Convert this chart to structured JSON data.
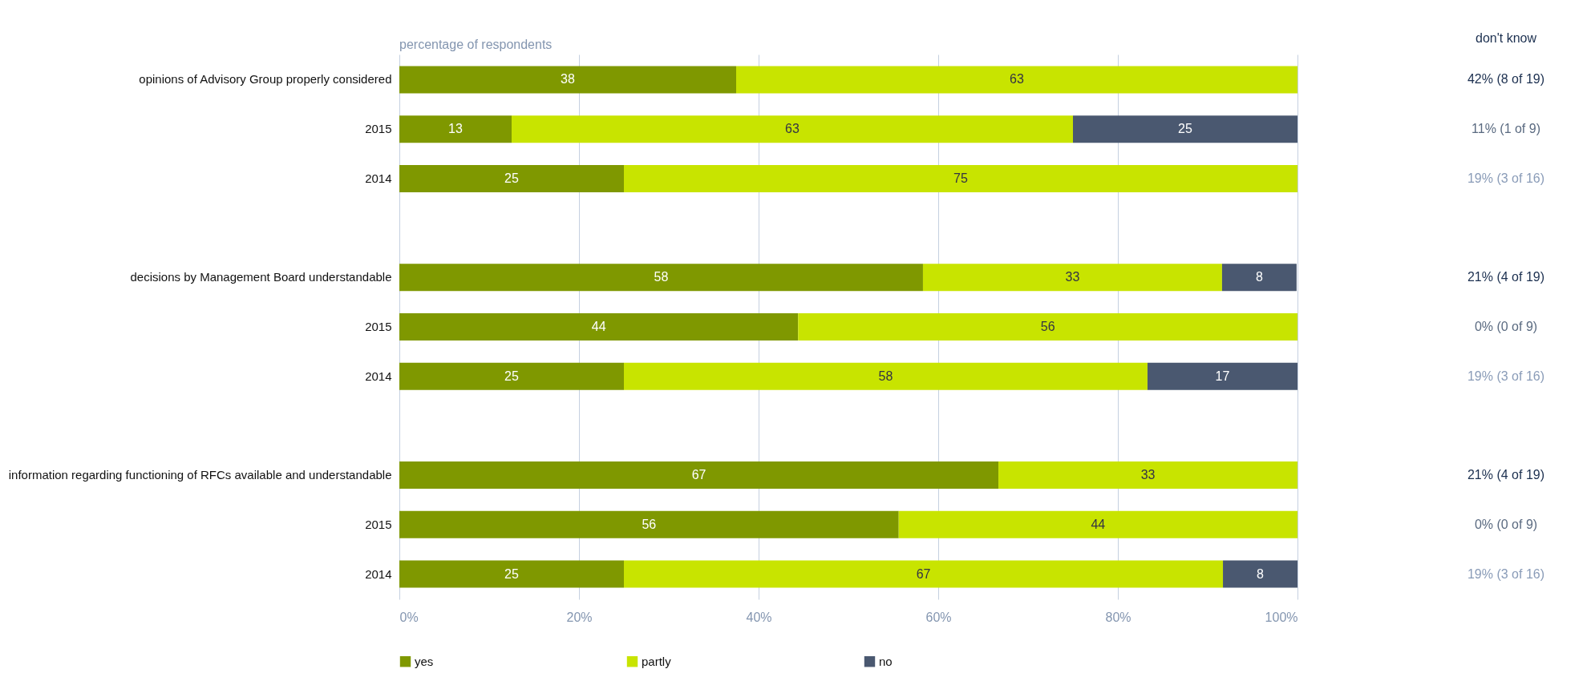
{
  "chart_data": {
    "type": "bar",
    "orientation": "horizontal",
    "stacked": true,
    "xlabel": "percentage of respondents",
    "categories": [
      "opinions of Advisory Group properly considered",
      "2015",
      "2014",
      null,
      "decisions by Management Board understandable",
      "2015",
      "2014",
      null,
      "information regarding functioning of RFCs available and understandable",
      "2015",
      "2014"
    ],
    "series": [
      {
        "name": "yes",
        "color": "#7f9800",
        "values": [
          37.5,
          12.5,
          25,
          null,
          58.3,
          44.4,
          25,
          null,
          66.7,
          55.6,
          25
        ],
        "value_labels": [
          "38",
          "13",
          "25",
          null,
          "58",
          "44",
          "25",
          null,
          "67",
          "56",
          "25"
        ]
      },
      {
        "name": "partly",
        "color": "#c8e400",
        "values": [
          62.5,
          62.5,
          75,
          null,
          33.3,
          55.6,
          58.3,
          null,
          33.3,
          44.4,
          66.7
        ],
        "value_labels": [
          "63",
          "63",
          "75",
          null,
          "33",
          "56",
          "58",
          null,
          "33",
          "44",
          "67"
        ]
      },
      {
        "name": "no",
        "color": "#4a5870",
        "values": [
          null,
          25,
          null,
          null,
          8.3,
          null,
          16.7,
          null,
          null,
          null,
          8.3
        ],
        "value_labels": [
          null,
          "25",
          null,
          null,
          "8",
          null,
          "17",
          null,
          null,
          null,
          "8"
        ]
      }
    ],
    "xlim": [
      0,
      100
    ],
    "xticks": [
      {
        "value": 0,
        "label": "0%"
      },
      {
        "value": 20,
        "label": "20%"
      },
      {
        "value": 40,
        "label": "40%"
      },
      {
        "value": 60,
        "label": "60%"
      },
      {
        "value": 80,
        "label": "80%"
      },
      {
        "value": 100,
        "label": "100%"
      }
    ],
    "grid": "x",
    "legend": "bottom",
    "annotations": [
      "don't know",
      "42% (8 of 19)",
      "11% (1 of 9)",
      "19% (3 of 16)",
      "21% (4 of 19)",
      "0% (0 of 9)",
      "19% (3 of 16)",
      "21% (4 of 19)",
      "0% (0 of 9)",
      "19% (3 of 16)"
    ]
  }
}
